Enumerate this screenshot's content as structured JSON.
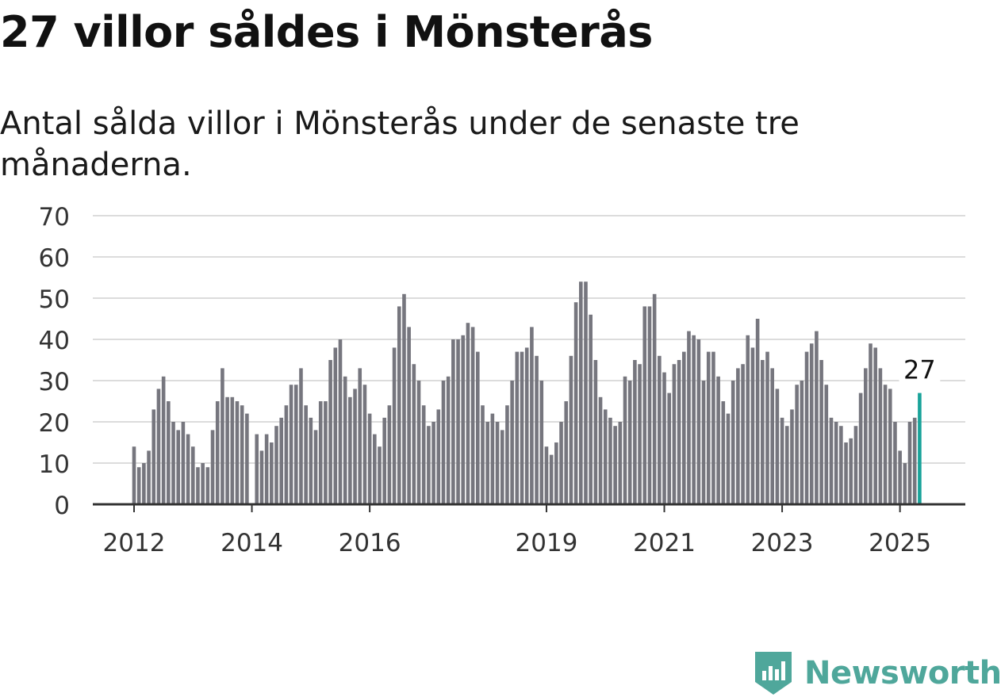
{
  "title": "27 villor såldes i Mönsterås",
  "subtitle": "Antal sålda villor i Mönsterås under de senaste tre månaderna.",
  "brand": {
    "name": "Newsworthy",
    "icon": "newsworthy-logo-icon",
    "color": "#4fa79b"
  },
  "colors": {
    "bar": "#76767e",
    "highlight": "#1aa39a",
    "grid": "#dcdcdc",
    "axis": "#333333"
  },
  "chart_data": {
    "type": "bar",
    "xlabel": "",
    "ylabel": "",
    "ylim": [
      0,
      70
    ],
    "yticks": [
      0,
      10,
      20,
      30,
      40,
      50,
      60,
      70
    ],
    "grid": true,
    "x_start": "2012-01",
    "x_tick_labels": [
      {
        "label": "2012",
        "month_index": 0
      },
      {
        "label": "2014",
        "month_index": 24
      },
      {
        "label": "2016",
        "month_index": 48
      },
      {
        "label": "2019",
        "month_index": 84
      },
      {
        "label": "2021",
        "month_index": 108
      },
      {
        "label": "2023",
        "month_index": 132
      },
      {
        "label": "2025",
        "month_index": 156
      }
    ],
    "values": [
      14,
      9,
      10,
      13,
      23,
      28,
      31,
      25,
      20,
      18,
      20,
      17,
      14,
      9,
      10,
      9,
      18,
      25,
      33,
      26,
      26,
      25,
      24,
      22,
      null,
      17,
      13,
      17,
      15,
      19,
      21,
      24,
      29,
      29,
      33,
      24,
      21,
      18,
      25,
      25,
      35,
      38,
      40,
      31,
      26,
      28,
      33,
      29,
      22,
      17,
      14,
      21,
      24,
      38,
      48,
      51,
      43,
      34,
      30,
      24,
      19,
      20,
      23,
      30,
      31,
      40,
      40,
      41,
      44,
      43,
      37,
      24,
      20,
      22,
      20,
      18,
      24,
      30,
      37,
      37,
      38,
      43,
      36,
      30,
      14,
      12,
      15,
      20,
      25,
      36,
      49,
      54,
      54,
      46,
      35,
      26,
      23,
      21,
      19,
      20,
      31,
      30,
      35,
      34,
      48,
      48,
      51,
      36,
      32,
      27,
      34,
      35,
      37,
      42,
      41,
      40,
      30,
      37,
      37,
      31,
      25,
      22,
      30,
      33,
      34,
      41,
      38,
      45,
      35,
      37,
      33,
      28,
      21,
      19,
      23,
      29,
      30,
      37,
      39,
      42,
      35,
      29,
      21,
      20,
      19,
      15,
      16,
      19,
      27,
      33,
      39,
      38,
      33,
      29,
      28,
      20,
      13,
      10,
      20,
      21,
      27
    ],
    "highlight": {
      "index": 160,
      "value": 27,
      "label": "27"
    }
  }
}
